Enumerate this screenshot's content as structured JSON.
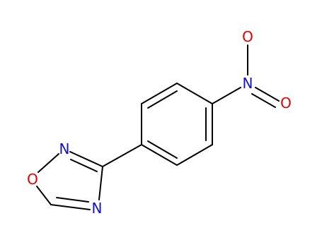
{
  "nodes": [
    {
      "label": "O"
    },
    {
      "label": "N"
    },
    {
      "label": "N"
    },
    {
      "label": "N"
    },
    {
      "label": "O"
    },
    {
      "label": "O"
    }
  ]
}
